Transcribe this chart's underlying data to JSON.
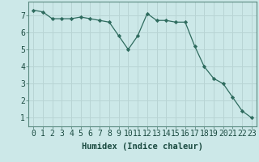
{
  "x": [
    0,
    1,
    2,
    3,
    4,
    5,
    6,
    7,
    8,
    9,
    10,
    11,
    12,
    13,
    14,
    15,
    16,
    17,
    18,
    19,
    20,
    21,
    22,
    23
  ],
  "y": [
    7.3,
    7.2,
    6.8,
    6.8,
    6.8,
    6.9,
    6.8,
    6.7,
    6.6,
    5.8,
    5.0,
    5.8,
    7.1,
    6.7,
    6.7,
    6.6,
    6.6,
    5.2,
    4.0,
    3.3,
    3.0,
    2.2,
    1.4,
    1.0
  ],
  "line_color": "#2e6b5e",
  "marker": "D",
  "marker_size": 2.2,
  "bg_color": "#cce8e8",
  "grid_color": "#b8d4d4",
  "xlabel": "Humidex (Indice chaleur)",
  "xlabel_fontsize": 7.5,
  "tick_fontsize": 7.0,
  "ylim": [
    0.5,
    7.8
  ],
  "yticks": [
    1,
    2,
    3,
    4,
    5,
    6,
    7
  ],
  "xticks": [
    0,
    1,
    2,
    3,
    4,
    5,
    6,
    7,
    8,
    9,
    10,
    11,
    12,
    13,
    14,
    15,
    16,
    17,
    18,
    19,
    20,
    21,
    22,
    23
  ],
  "spine_color": "#5a8a80",
  "tick_color": "#5a8a80"
}
